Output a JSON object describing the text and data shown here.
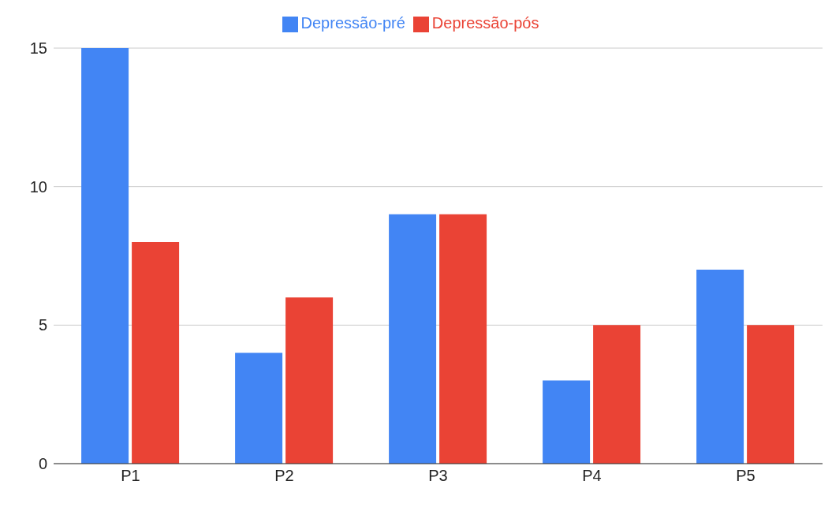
{
  "chart_data": {
    "type": "bar",
    "categories": [
      "P1",
      "P2",
      "P3",
      "P4",
      "P5"
    ],
    "series": [
      {
        "name": "Depressão-pré",
        "color": "#4285f4",
        "values": [
          15,
          4,
          9,
          3,
          7
        ]
      },
      {
        "name": "Depressão-pós",
        "color": "#ea4335",
        "values": [
          8,
          6,
          9,
          5,
          5
        ]
      }
    ],
    "ylim": [
      0,
      15
    ],
    "yticks": [
      0,
      5,
      10,
      15
    ],
    "grid": "y",
    "legend": "top"
  }
}
